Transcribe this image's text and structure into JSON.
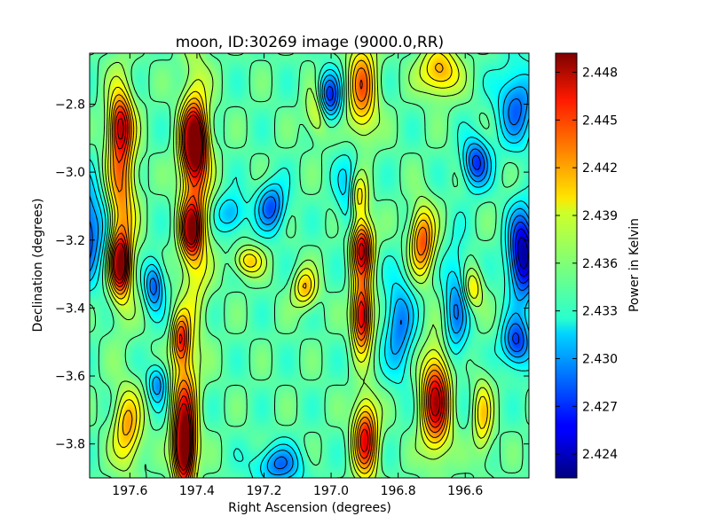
{
  "chart_data": {
    "type": "heatmap",
    "title": "moon, ID:30269 image (9000.0,RR)",
    "xlabel": "Right Ascension (degrees)",
    "ylabel": "Declination (degrees)",
    "colorbar_label": "Power in Kelvin",
    "xlim": [
      197.72,
      196.41
    ],
    "ylim": [
      -3.9,
      -2.65
    ],
    "x_ticks": [
      197.6,
      197.4,
      197.2,
      197.0,
      196.8,
      196.6
    ],
    "x_tick_labels": [
      "197.6",
      "197.4",
      "197.2",
      "197.0",
      "196.8",
      "196.6"
    ],
    "y_ticks": [
      -2.8,
      -3.0,
      -3.2,
      -3.4,
      -3.6,
      -3.8
    ],
    "y_tick_labels": [
      "−2.8",
      "−3.0",
      "−3.2",
      "−3.4",
      "−3.6",
      "−3.8"
    ],
    "colorbar_range": [
      2.4225,
      2.4492
    ],
    "colorbar_ticks": [
      2.424,
      2.427,
      2.43,
      2.433,
      2.436,
      2.439,
      2.442,
      2.445,
      2.448
    ],
    "colorbar_tick_labels": [
      "2.424",
      "2.427",
      "2.430",
      "2.433",
      "2.436",
      "2.439",
      "2.442",
      "2.445",
      "2.448"
    ],
    "colormap": "jet",
    "contours": true,
    "grid": false,
    "features": [
      {
        "ra": 197.41,
        "dec": -2.91,
        "value": 2.4475,
        "sx": 0.025,
        "sy": 0.07
      },
      {
        "ra": 197.42,
        "dec": -3.17,
        "value": 2.4445,
        "sx": 0.02,
        "sy": 0.05
      },
      {
        "ra": 197.41,
        "dec": -3.05,
        "value": 2.442,
        "sx": 0.03,
        "sy": 0.25
      },
      {
        "ra": 197.44,
        "dec": -3.82,
        "value": 2.4482,
        "sx": 0.02,
        "sy": 0.07
      },
      {
        "ra": 197.44,
        "dec": -3.7,
        "value": 2.444,
        "sx": 0.025,
        "sy": 0.12
      },
      {
        "ra": 197.45,
        "dec": -3.49,
        "value": 2.4435,
        "sx": 0.018,
        "sy": 0.05
      },
      {
        "ra": 197.63,
        "dec": -3.27,
        "value": 2.4472,
        "sx": 0.02,
        "sy": 0.06
      },
      {
        "ra": 197.63,
        "dec": -3.05,
        "value": 2.443,
        "sx": 0.03,
        "sy": 0.2
      },
      {
        "ra": 197.63,
        "dec": -2.86,
        "value": 2.443,
        "sx": 0.022,
        "sy": 0.06
      },
      {
        "ra": 197.61,
        "dec": -3.75,
        "value": 2.4415,
        "sx": 0.03,
        "sy": 0.08
      },
      {
        "ra": 196.91,
        "dec": -3.22,
        "value": 2.4475,
        "sx": 0.022,
        "sy": 0.06
      },
      {
        "ra": 196.91,
        "dec": -3.42,
        "value": 2.448,
        "sx": 0.02,
        "sy": 0.07
      },
      {
        "ra": 196.92,
        "dec": -3.07,
        "value": 2.443,
        "sx": 0.02,
        "sy": 0.05
      },
      {
        "ra": 196.9,
        "dec": -3.78,
        "value": 2.446,
        "sx": 0.025,
        "sy": 0.08
      },
      {
        "ra": 196.91,
        "dec": -2.75,
        "value": 2.443,
        "sx": 0.03,
        "sy": 0.1
      },
      {
        "ra": 196.69,
        "dec": -3.67,
        "value": 2.4475,
        "sx": 0.03,
        "sy": 0.1
      },
      {
        "ra": 196.73,
        "dec": -3.2,
        "value": 2.444,
        "sx": 0.025,
        "sy": 0.07
      },
      {
        "ra": 196.68,
        "dec": -2.7,
        "value": 2.442,
        "sx": 0.04,
        "sy": 0.05
      },
      {
        "ra": 197.8,
        "dec": -3.17,
        "value": 2.423,
        "sx": 0.08,
        "sy": 0.1
      },
      {
        "ra": 196.43,
        "dec": -3.24,
        "value": 2.423,
        "sx": 0.03,
        "sy": 0.09
      },
      {
        "ra": 196.45,
        "dec": -3.5,
        "value": 2.427,
        "sx": 0.03,
        "sy": 0.05
      },
      {
        "ra": 196.45,
        "dec": -2.8,
        "value": 2.4285,
        "sx": 0.04,
        "sy": 0.08
      },
      {
        "ra": 197.01,
        "dec": -2.78,
        "value": 2.4255,
        "sx": 0.025,
        "sy": 0.05
      },
      {
        "ra": 196.57,
        "dec": -2.97,
        "value": 2.427,
        "sx": 0.028,
        "sy": 0.05
      },
      {
        "ra": 197.18,
        "dec": -3.1,
        "value": 2.428,
        "sx": 0.03,
        "sy": 0.05
      },
      {
        "ra": 197.53,
        "dec": -3.33,
        "value": 2.428,
        "sx": 0.02,
        "sy": 0.05
      },
      {
        "ra": 196.8,
        "dec": -3.45,
        "value": 2.429,
        "sx": 0.03,
        "sy": 0.1
      },
      {
        "ra": 196.63,
        "dec": -3.4,
        "value": 2.4295,
        "sx": 0.025,
        "sy": 0.12
      },
      {
        "ra": 197.16,
        "dec": -3.86,
        "value": 2.429,
        "sx": 0.05,
        "sy": 0.04
      },
      {
        "ra": 196.94,
        "dec": -3.06,
        "value": 2.43,
        "sx": 0.03,
        "sy": 0.08
      },
      {
        "ra": 197.3,
        "dec": -3.12,
        "value": 2.43,
        "sx": 0.03,
        "sy": 0.04
      },
      {
        "ra": 197.52,
        "dec": -3.62,
        "value": 2.4295,
        "sx": 0.02,
        "sy": 0.04
      },
      {
        "ra": 197.25,
        "dec": -3.26,
        "value": 2.4405,
        "sx": 0.03,
        "sy": 0.03
      },
      {
        "ra": 197.08,
        "dec": -3.34,
        "value": 2.441,
        "sx": 0.025,
        "sy": 0.04
      },
      {
        "ra": 196.58,
        "dec": -3.34,
        "value": 2.44,
        "sx": 0.02,
        "sy": 0.04
      },
      {
        "ra": 197.04,
        "dec": -2.82,
        "value": 2.4405,
        "sx": 0.025,
        "sy": 0.05
      },
      {
        "ra": 196.55,
        "dec": -3.72,
        "value": 2.44,
        "sx": 0.02,
        "sy": 0.08
      }
    ]
  }
}
